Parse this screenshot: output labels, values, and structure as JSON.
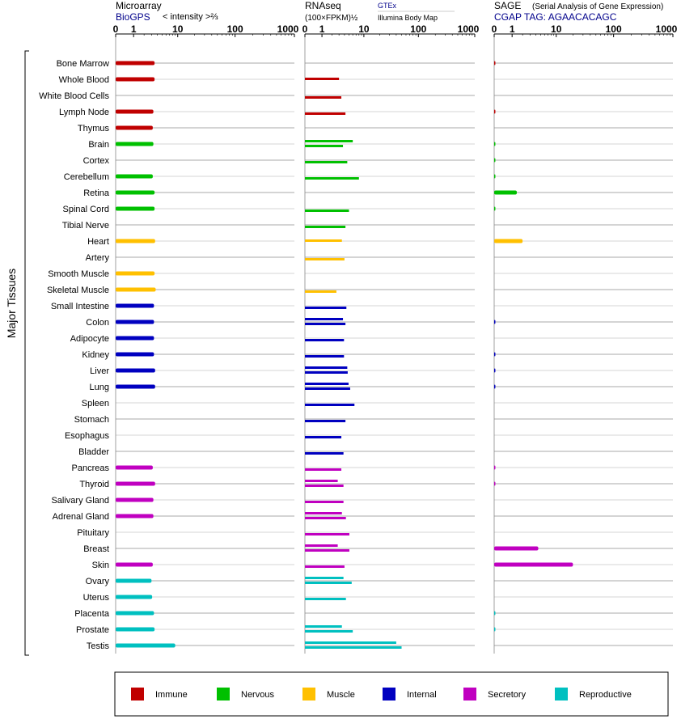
{
  "panels": {
    "microarray": {
      "title": "Microarray",
      "source": "BioGPS",
      "metric": "< intensity >⅔"
    },
    "rnaseq": {
      "title": "RNAseq",
      "metric": "(100×FPKM)½",
      "sources": [
        "GTEx",
        "Illumina Body Map"
      ]
    },
    "sage": {
      "title": "SAGE",
      "subtitle": "(Serial Analysis of Gene Expression)",
      "tag": "CGAP TAG: AGAACACAGC"
    }
  },
  "group_label": "Major Tissues",
  "chart_data": {
    "type": "bar",
    "orientation": "horizontal",
    "x_scale": "log",
    "x_ticks": [
      "0",
      "1",
      "10",
      "100",
      "1000"
    ],
    "xlim": [
      0,
      1000
    ],
    "categories": [
      "Bone Marrow",
      "Whole Blood",
      "White Blood Cells",
      "Lymph Node",
      "Thymus",
      "Brain",
      "Cortex",
      "Cerebellum",
      "Retina",
      "Spinal Cord",
      "Tibial Nerve",
      "Heart",
      "Artery",
      "Smooth Muscle",
      "Skeletal Muscle",
      "Small Intestine",
      "Colon",
      "Adipocyte",
      "Kidney",
      "Liver",
      "Lung",
      "Spleen",
      "Stomach",
      "Esophagus",
      "Bladder",
      "Pancreas",
      "Thyroid",
      "Salivary Gland",
      "Adrenal Gland",
      "Pituitary",
      "Breast",
      "Skin",
      "Ovary",
      "Uterus",
      "Placenta",
      "Prostate",
      "Testis"
    ],
    "tissue_group": [
      "Immune",
      "Immune",
      "Immune",
      "Immune",
      "Immune",
      "Nervous",
      "Nervous",
      "Nervous",
      "Nervous",
      "Nervous",
      "Nervous",
      "Muscle",
      "Muscle",
      "Muscle",
      "Muscle",
      "Internal",
      "Internal",
      "Internal",
      "Internal",
      "Internal",
      "Internal",
      "Internal",
      "Internal",
      "Internal",
      "Internal",
      "Secretory",
      "Secretory",
      "Secretory",
      "Secretory",
      "Secretory",
      "Secretory",
      "Secretory",
      "Reproductive",
      "Reproductive",
      "Reproductive",
      "Reproductive",
      "Reproductive"
    ],
    "legend": [
      {
        "name": "Immune",
        "color": "#c00000"
      },
      {
        "name": "Nervous",
        "color": "#00c000"
      },
      {
        "name": "Muscle",
        "color": "#ffc000"
      },
      {
        "name": "Internal",
        "color": "#0000c0"
      },
      {
        "name": "Secretory",
        "color": "#c000c0"
      },
      {
        "name": "Reproductive",
        "color": "#00c0c0"
      }
    ],
    "legend_position": "bottom",
    "series": [
      {
        "name": "BioGPS",
        "values": [
          3.5,
          3.5,
          null,
          3.3,
          3.2,
          3.3,
          null,
          3.2,
          3.5,
          3.5,
          null,
          3.6,
          null,
          3.5,
          3.7,
          3.4,
          3.4,
          3.4,
          3.4,
          3.6,
          3.6,
          null,
          null,
          null,
          null,
          3.2,
          3.6,
          3.3,
          3.3,
          null,
          null,
          3.2,
          3,
          3.1,
          3.4,
          3.5,
          9
        ]
      },
      {
        "name": "GTEx",
        "values": [
          null,
          3,
          null,
          null,
          null,
          6,
          null,
          null,
          null,
          null,
          null,
          3.5,
          null,
          null,
          null,
          null,
          3.7,
          null,
          null,
          4.6,
          4.9,
          null,
          null,
          null,
          null,
          null,
          2.8,
          null,
          3.5,
          null,
          2.8,
          null,
          3.8,
          null,
          null,
          3.5,
          40
        ]
      },
      {
        "name": "Illumina Body Map",
        "values": [
          null,
          null,
          3.4,
          4.2,
          null,
          3.7,
          4.6,
          8,
          null,
          5,
          4.2,
          null,
          4,
          null,
          2.6,
          4.4,
          4.2,
          3.9,
          3.9,
          4.7,
          5.3,
          6.5,
          4.2,
          3.4,
          3.8,
          3.4,
          3.8,
          3.8,
          4.3,
          5.1,
          5.1,
          4,
          5.7,
          4.3,
          null,
          6,
          50
        ]
      },
      {
        "name": "SAGE",
        "values": [
          0.03,
          null,
          null,
          0.02,
          null,
          0.02,
          0.02,
          0.02,
          1.4,
          0.02,
          null,
          2,
          null,
          null,
          null,
          null,
          0.02,
          null,
          0.02,
          0.02,
          0.02,
          null,
          null,
          null,
          null,
          0.02,
          0.02,
          null,
          null,
          null,
          4.5,
          20,
          null,
          null,
          0.02,
          0.02,
          null
        ]
      }
    ]
  }
}
